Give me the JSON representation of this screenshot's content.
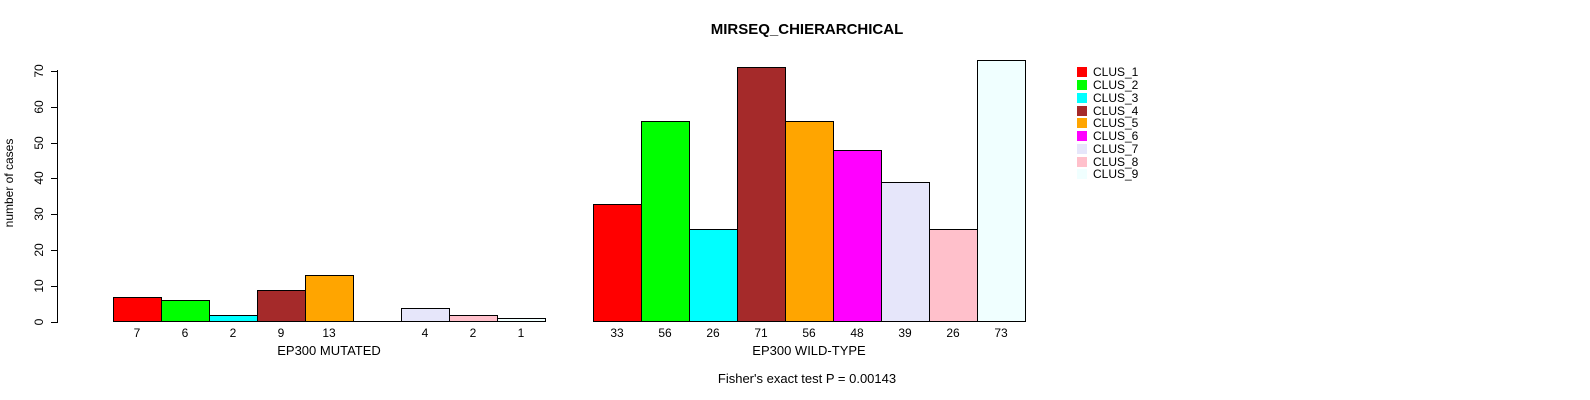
{
  "chart_data": {
    "type": "bar",
    "title": "MIRSEQ_CHIERARCHICAL",
    "ylabel": "number of cases",
    "xlabel": "",
    "ylim": [
      0,
      73
    ],
    "yticks": [
      0,
      10,
      20,
      30,
      40,
      50,
      60,
      70
    ],
    "grid": false,
    "legend_position": "right",
    "annotation": "Fisher's exact test P = 0.00143",
    "legend": [
      {
        "label": "CLUS_1",
        "color": "#FF0000"
      },
      {
        "label": "CLUS_2",
        "color": "#00FF00"
      },
      {
        "label": "CLUS_3",
        "color": "#00FFFF"
      },
      {
        "label": "CLUS_4",
        "color": "#A52A2A"
      },
      {
        "label": "CLUS_5",
        "color": "#FFA500"
      },
      {
        "label": "CLUS_6",
        "color": "#FF00FF"
      },
      {
        "label": "CLUS_7",
        "color": "#E6E6FA"
      },
      {
        "label": "CLUS_8",
        "color": "#FFC0CB"
      },
      {
        "label": "CLUS_9",
        "color": "#F0FFFF"
      }
    ],
    "groups": [
      {
        "label": "EP300 MUTATED",
        "values": [
          7,
          6,
          2,
          9,
          13,
          0,
          4,
          2,
          1
        ],
        "bar_labels": [
          "7",
          "6",
          "2",
          "9",
          "13",
          "",
          "4",
          "2",
          "1"
        ]
      },
      {
        "label": "EP300 WILD-TYPE",
        "values": [
          33,
          56,
          26,
          71,
          56,
          48,
          39,
          26,
          73
        ],
        "bar_labels": [
          "33",
          "56",
          "26",
          "71",
          "56",
          "48",
          "39",
          "26",
          "73"
        ]
      }
    ]
  }
}
